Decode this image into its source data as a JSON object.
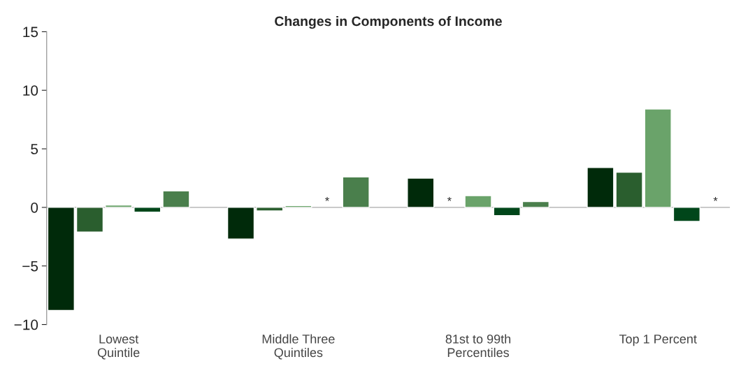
{
  "chart_data": {
    "type": "bar",
    "title": "Changes in Components of Income",
    "categories": [
      "Lowest\nQuintile",
      "Middle Three\nQuintiles",
      "81st to 99th\nPercentiles",
      "Top 1 Percent"
    ],
    "series": [
      {
        "color": "#002a0a",
        "values": [
          -8.8,
          -2.7,
          2.5,
          3.4
        ]
      },
      {
        "color": "#2a5e2e",
        "values": [
          -2.1,
          -0.3,
          null,
          3.0
        ],
        "value_labels": [
          null,
          null,
          "*",
          null
        ]
      },
      {
        "color": "#6aa36a",
        "values": [
          0.2,
          0.15,
          1.0,
          8.4
        ]
      },
      {
        "color": "#00461a",
        "values": [
          -0.4,
          null,
          -0.7,
          -1.2
        ],
        "value_labels": [
          null,
          "*",
          null,
          null
        ]
      },
      {
        "color": "#4a7f4c",
        "values": [
          1.4,
          2.6,
          0.5,
          null
        ],
        "value_labels": [
          null,
          null,
          null,
          "*"
        ]
      }
    ],
    "ylim": [
      -10,
      15
    ],
    "yticks": [
      {
        "value": -10,
        "label": "−10"
      },
      {
        "value": -5,
        "label": "−5"
      },
      0,
      5,
      10,
      15
    ],
    "ref_lines": [
      {
        "axis": "y",
        "value": 0,
        "color": "#aaaaaa"
      }
    ],
    "grid": false,
    "legend": false
  }
}
